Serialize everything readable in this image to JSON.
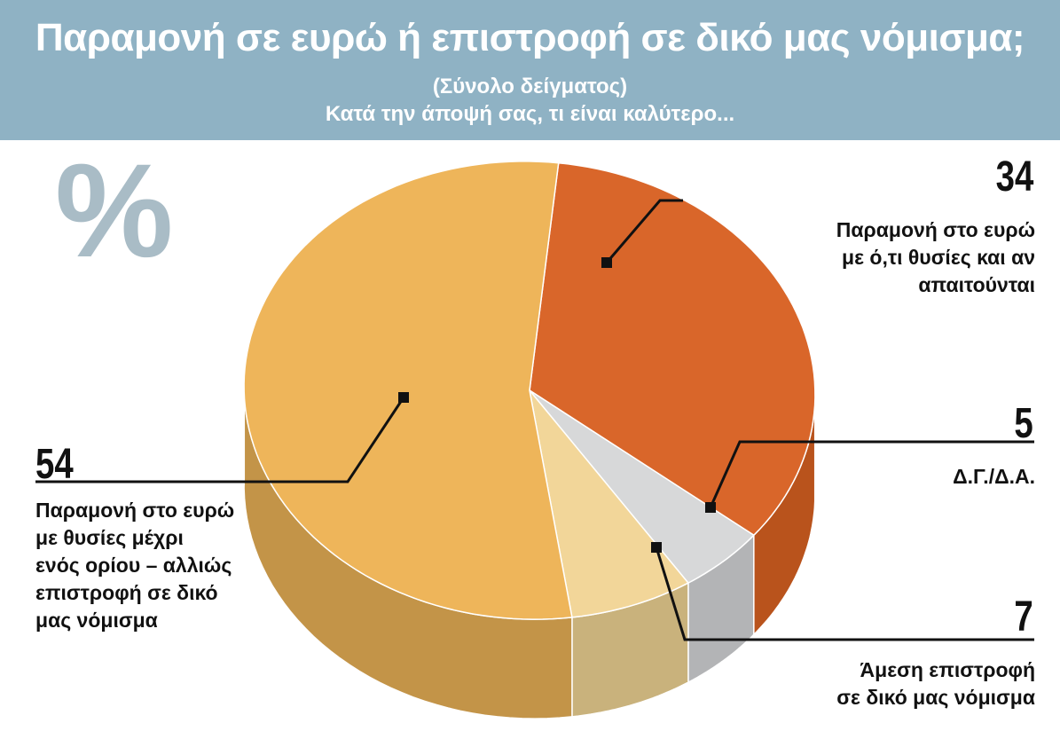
{
  "header": {
    "title": "Παραμονή σε ευρώ ή επιστροφή σε δικό μας νόμισμα;",
    "subtitle": "(Σύνολο δείγματος)",
    "question": "Κατά την άποψή σας, τι είναι καλύτερο..."
  },
  "percent_sign": "%",
  "colors": {
    "header_bg": "#8fb2c4",
    "percent_sign": "#a9bcc6"
  },
  "chart_data": {
    "type": "pie",
    "title": "Παραμονή σε ευρώ ή επιστροφή σε δικό μας νόμισμα;",
    "subtitle": "Κατά την άποψή σας, τι είναι καλύτερο...",
    "unit": "%",
    "style": "3d",
    "slices": [
      {
        "value": 34,
        "value_label": "34",
        "label_lines": [
          "Παραμονή στο ευρώ",
          "με ό,τι θυσίες και αν",
          "απαιτούνται"
        ],
        "color": "#d9662a",
        "side_color": "#b9531c"
      },
      {
        "value": 5,
        "value_label": "5",
        "label_lines": [
          "Δ.Γ./Δ.Α."
        ],
        "color": "#d7d8d9",
        "side_color": "#b3b4b6"
      },
      {
        "value": 7,
        "value_label": "7",
        "label_lines": [
          "Άμεση επιστροφή",
          "σε δικό μας νόμισμα"
        ],
        "color": "#f2d699",
        "side_color": "#c9b27c"
      },
      {
        "value": 54,
        "value_label": "54",
        "label_lines": [
          "Παραμονή στο ευρώ",
          "με θυσίες μέχρι",
          "ενός ορίου – αλλιώς",
          "επιστροφή σε δικό",
          "μας νόμισμα"
        ],
        "color": "#eeb55a",
        "side_color": "#c39448"
      }
    ]
  }
}
